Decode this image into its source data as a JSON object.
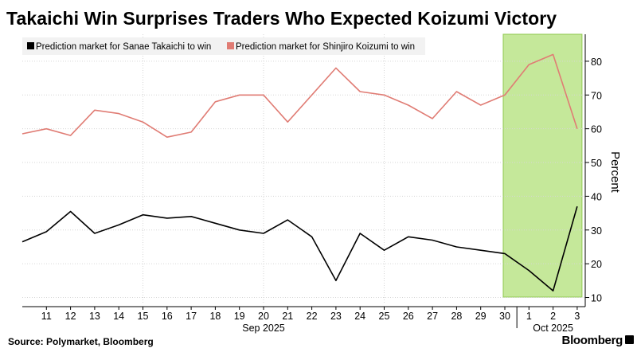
{
  "title": "Takaichi Win Surprises Traders Who Expected Koizumi Victory",
  "source": "Source: Polymarket, Bloomberg",
  "brand": "Bloomberg",
  "colors": {
    "takaichi": "#000000",
    "koizumi": "#e07c74",
    "highlight": "#c5e89a",
    "highlight_border": "#8fc94f",
    "grid": "#d6d6d6"
  },
  "chart_data": {
    "type": "line",
    "x": [
      "Sep 10",
      "Sep 11",
      "Sep 12",
      "Sep 13",
      "Sep 14",
      "Sep 15",
      "Sep 16",
      "Sep 17",
      "Sep 18",
      "Sep 19",
      "Sep 20",
      "Sep 21",
      "Sep 22",
      "Sep 23",
      "Sep 24",
      "Sep 25",
      "Sep 26",
      "Sep 27",
      "Sep 28",
      "Sep 29",
      "Sep 30",
      "Oct 1",
      "Oct 2",
      "Oct 3"
    ],
    "x_tick_labels": [
      "11",
      "12",
      "13",
      "14",
      "15",
      "16",
      "17",
      "18",
      "19",
      "20",
      "21",
      "22",
      "23",
      "24",
      "25",
      "26",
      "27",
      "28",
      "29",
      "30",
      "1",
      "2",
      "3"
    ],
    "x_group_labels": [
      {
        "label": "Sep 2025",
        "at": "Sep 20"
      },
      {
        "label": "Oct 2025",
        "at": "Oct 2"
      }
    ],
    "series": [
      {
        "name": "Prediction market for Sanae Takaichi to win",
        "values": [
          26.5,
          29.5,
          35.5,
          29,
          31.5,
          34.5,
          33.5,
          34,
          32,
          30,
          29,
          33,
          28,
          15,
          29,
          24,
          28,
          27,
          25,
          24,
          23,
          18,
          12,
          37
        ]
      },
      {
        "name": "Prediction market for Shinjiro Koizumi to win",
        "values": [
          58.5,
          60,
          58,
          65.5,
          64.5,
          62,
          57.5,
          59,
          68,
          70,
          70,
          62,
          70,
          78,
          71,
          70,
          67,
          63,
          71,
          67,
          70,
          79,
          82,
          60
        ]
      }
    ],
    "highlight": {
      "from": "Sep 30",
      "to": "Oct 3"
    },
    "ylabel": "Percent",
    "yticks": [
      10,
      20,
      30,
      40,
      50,
      60,
      70,
      80
    ],
    "ylim": [
      8,
      88
    ],
    "y_axis_side": "right",
    "grid": true,
    "legend_position": "top-left"
  }
}
